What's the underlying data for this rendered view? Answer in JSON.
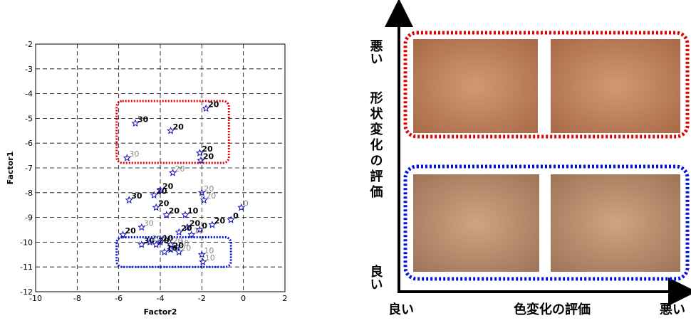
{
  "chart_data": {
    "type": "scatter",
    "xlabel": "Factor2",
    "ylabel": "Factor1",
    "xlim": [
      -10,
      2
    ],
    "ylim": [
      -12,
      -2
    ],
    "xticks": [
      -10,
      -8,
      -6,
      -4,
      -2,
      0,
      2
    ],
    "yticks": [
      -12,
      -11,
      -10,
      -9,
      -8,
      -7,
      -6,
      -5,
      -4,
      -3,
      -2
    ],
    "grid": true,
    "color": "#1010c0",
    "x": [
      -5.2,
      -3.5,
      -1.8,
      -5.6,
      -2.1,
      -2.05,
      -3.4,
      -5.5,
      -4.3,
      -4.0,
      -2.0,
      -1.9,
      -0.1,
      -4.2,
      -3.7,
      -2.8,
      -4.9,
      -0.6,
      -1.5,
      -2.7,
      -3.1,
      -2.1,
      -2.5,
      -5.8,
      -4.9,
      -4.5,
      -4.2,
      -4.0,
      -3.5,
      -3.2,
      -3.8,
      -3.5,
      -3.1,
      -2.0,
      -1.95
    ],
    "values": [
      -5.2,
      -5.5,
      -4.6,
      -6.6,
      -6.4,
      -6.7,
      -7.2,
      -8.3,
      -8.1,
      -7.9,
      -8.0,
      -8.3,
      -8.6,
      -8.6,
      -8.9,
      -8.9,
      -9.4,
      -9.1,
      -9.3,
      -9.4,
      -9.6,
      -9.5,
      -9.7,
      -9.7,
      -10.1,
      -10.0,
      -10.1,
      -10.0,
      -10.1,
      -10.2,
      -10.4,
      -10.3,
      -10.4,
      -10.5,
      -10.8
    ],
    "point_labels": [
      "30",
      "20",
      "20",
      "30",
      "20",
      "20",
      "20",
      "30",
      "20",
      "20",
      "20",
      "20",
      "0",
      "20",
      "20",
      "10",
      "30",
      "0",
      "20",
      "20",
      "20",
      "0",
      "10",
      "20",
      "30",
      "20",
      "20",
      "10",
      "20",
      "30",
      "10",
      "20",
      "20",
      "10",
      "10"
    ],
    "label_bold": [
      true,
      true,
      true,
      false,
      true,
      true,
      false,
      true,
      true,
      true,
      false,
      false,
      false,
      true,
      true,
      true,
      false,
      true,
      true,
      true,
      true,
      true,
      false,
      true,
      true,
      false,
      true,
      true,
      false,
      false,
      true,
      true,
      false,
      false,
      false
    ],
    "highlight_boxes": [
      {
        "color": "#e00000",
        "xlim": [
          -6.1,
          -0.7
        ],
        "ylim": [
          -6.8,
          -4.3
        ]
      },
      {
        "color": "#0010e0",
        "xlim": [
          -6.1,
          -0.6
        ],
        "ylim": [
          -11.0,
          -9.8
        ]
      }
    ]
  },
  "diagram": {
    "y_axis_top": "悪い",
    "y_axis_title": "形状変化の評価",
    "y_axis_bottom": "良い",
    "x_axis_left": "良い",
    "x_axis_title": "色変化の評価",
    "x_axis_right": "悪い"
  }
}
